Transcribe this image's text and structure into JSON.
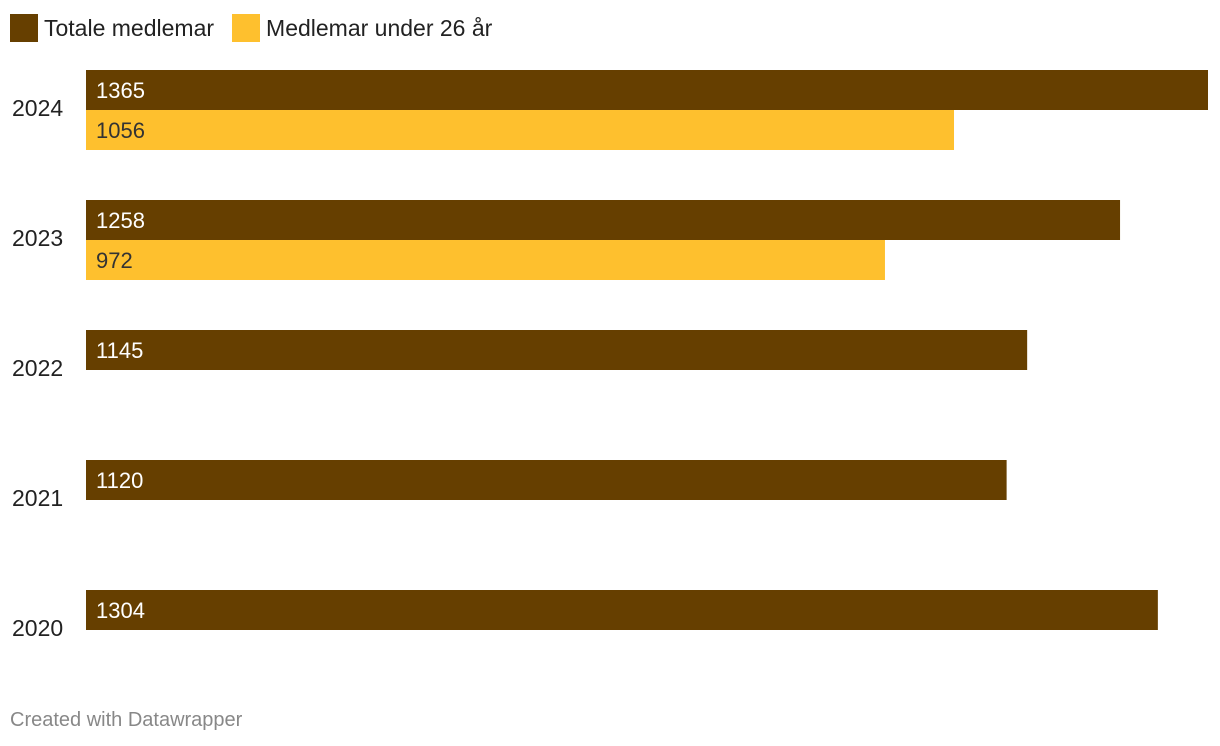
{
  "chart_data": {
    "type": "bar",
    "orientation": "horizontal",
    "categories": [
      "2024",
      "2023",
      "2022",
      "2021",
      "2020"
    ],
    "series": [
      {
        "name": "Totale medlemar",
        "color": "#663f00",
        "label_color": "#ffffff",
        "values": [
          1365,
          1258,
          1145,
          1120,
          1304
        ]
      },
      {
        "name": "Medlemar under 26 år",
        "color": "#fec02e",
        "label_color": "#333333",
        "values": [
          1056,
          972,
          null,
          null,
          null
        ]
      }
    ],
    "xlim": [
      0,
      1365
    ],
    "grid": false,
    "legend_position": "top-left",
    "data_labels": "inside-start"
  },
  "credit": "Created with Datawrapper"
}
